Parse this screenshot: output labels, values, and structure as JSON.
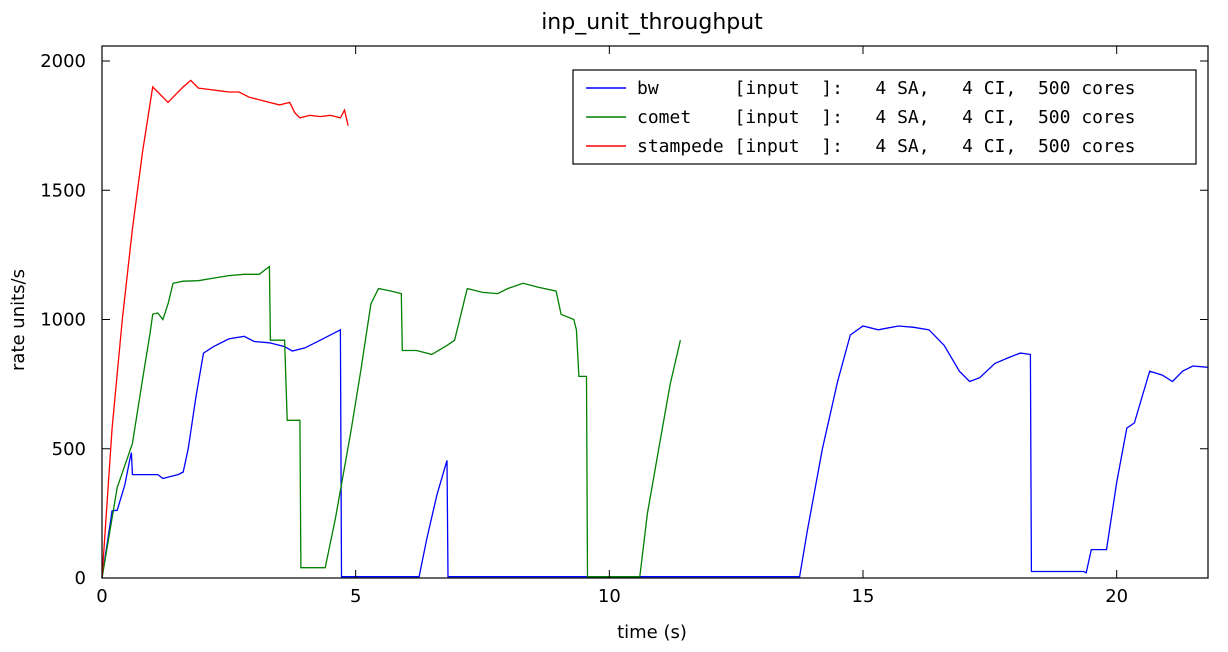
{
  "chart_data": {
    "type": "line",
    "title": "inp_unit_throughput",
    "xlabel": "time (s)",
    "ylabel": "rate units/s",
    "xlim": [
      0,
      21.8
    ],
    "ylim": [
      0,
      2000
    ],
    "xticks": [
      0,
      5,
      10,
      15,
      20
    ],
    "xtick_labels": [
      "0",
      "5",
      "10",
      "15",
      "20"
    ],
    "yticks": [
      0,
      500,
      1000,
      1500,
      2000
    ],
    "ytick_labels": [
      "0",
      "500",
      "1000",
      "1500",
      "2000"
    ],
    "grid": false,
    "legend_position": "top-right",
    "series": [
      {
        "name": "bw       [input  ]:   4 SA,   4 CI,  500 cores",
        "color": "#0000ff",
        "points": [
          [
            0,
            0
          ],
          [
            0.2,
            260
          ],
          [
            0.3,
            262
          ],
          [
            0.45,
            360
          ],
          [
            0.55,
            460
          ],
          [
            0.58,
            485
          ],
          [
            0.6,
            400
          ],
          [
            1.1,
            400
          ],
          [
            1.2,
            385
          ],
          [
            1.4,
            395
          ],
          [
            1.5,
            400
          ],
          [
            1.6,
            410
          ],
          [
            1.7,
            500
          ],
          [
            1.85,
            700
          ],
          [
            2.0,
            870
          ],
          [
            2.2,
            895
          ],
          [
            2.5,
            925
          ],
          [
            2.8,
            935
          ],
          [
            3.0,
            915
          ],
          [
            3.3,
            910
          ],
          [
            3.6,
            895
          ],
          [
            3.75,
            878
          ],
          [
            4.0,
            890
          ],
          [
            4.3,
            920
          ],
          [
            4.6,
            950
          ],
          [
            4.7,
            960
          ],
          [
            4.72,
            5
          ],
          [
            6.25,
            5
          ],
          [
            6.4,
            150
          ],
          [
            6.6,
            320
          ],
          [
            6.8,
            455
          ],
          [
            6.82,
            5
          ],
          [
            13.75,
            5
          ],
          [
            13.9,
            180
          ],
          [
            14.2,
            500
          ],
          [
            14.5,
            760
          ],
          [
            14.75,
            940
          ],
          [
            15.0,
            975
          ],
          [
            15.3,
            960
          ],
          [
            15.7,
            975
          ],
          [
            16.0,
            970
          ],
          [
            16.3,
            960
          ],
          [
            16.6,
            900
          ],
          [
            16.9,
            800
          ],
          [
            17.1,
            760
          ],
          [
            17.3,
            775
          ],
          [
            17.6,
            830
          ],
          [
            17.9,
            855
          ],
          [
            18.1,
            870
          ],
          [
            18.3,
            865
          ],
          [
            18.32,
            25
          ],
          [
            19.35,
            25
          ],
          [
            19.4,
            20
          ],
          [
            19.5,
            110
          ],
          [
            19.8,
            110
          ],
          [
            20.0,
            370
          ],
          [
            20.2,
            580
          ],
          [
            20.35,
            600
          ],
          [
            20.5,
            700
          ],
          [
            20.65,
            800
          ],
          [
            20.9,
            785
          ],
          [
            21.1,
            760
          ],
          [
            21.3,
            800
          ],
          [
            21.5,
            820
          ],
          [
            21.8,
            815
          ]
        ]
      },
      {
        "name": "comet    [input  ]:   4 SA,   4 CI,  500 cores",
        "color": "#008000",
        "points": [
          [
            0,
            0
          ],
          [
            0.3,
            350
          ],
          [
            0.6,
            520
          ],
          [
            0.8,
            770
          ],
          [
            0.95,
            950
          ],
          [
            1.0,
            1020
          ],
          [
            1.1,
            1025
          ],
          [
            1.2,
            1000
          ],
          [
            1.3,
            1060
          ],
          [
            1.4,
            1140
          ],
          [
            1.6,
            1148
          ],
          [
            1.9,
            1150
          ],
          [
            2.2,
            1160
          ],
          [
            2.5,
            1170
          ],
          [
            2.8,
            1175
          ],
          [
            3.1,
            1175
          ],
          [
            3.3,
            1205
          ],
          [
            3.32,
            920
          ],
          [
            3.6,
            920
          ],
          [
            3.65,
            610
          ],
          [
            3.9,
            610
          ],
          [
            3.92,
            40
          ],
          [
            4.4,
            40
          ],
          [
            4.6,
            230
          ],
          [
            4.9,
            560
          ],
          [
            5.1,
            800
          ],
          [
            5.3,
            1060
          ],
          [
            5.45,
            1120
          ],
          [
            5.7,
            1110
          ],
          [
            5.9,
            1100
          ],
          [
            5.92,
            880
          ],
          [
            6.2,
            880
          ],
          [
            6.5,
            865
          ],
          [
            6.8,
            900
          ],
          [
            6.95,
            920
          ],
          [
            7.05,
            1000
          ],
          [
            7.15,
            1080
          ],
          [
            7.2,
            1120
          ],
          [
            7.5,
            1105
          ],
          [
            7.8,
            1100
          ],
          [
            8.0,
            1120
          ],
          [
            8.3,
            1140
          ],
          [
            8.6,
            1125
          ],
          [
            8.95,
            1110
          ],
          [
            9.05,
            1020
          ],
          [
            9.3,
            1000
          ],
          [
            9.35,
            960
          ],
          [
            9.4,
            780
          ],
          [
            9.55,
            780
          ],
          [
            9.57,
            5
          ],
          [
            10.6,
            5
          ],
          [
            10.75,
            250
          ],
          [
            11.0,
            530
          ],
          [
            11.2,
            750
          ],
          [
            11.4,
            920
          ]
        ]
      },
      {
        "name": "stampede [input  ]:   4 SA,   4 CI,  500 cores",
        "color": "#ff0000",
        "points": [
          [
            0,
            0
          ],
          [
            0.2,
            580
          ],
          [
            0.4,
            1000
          ],
          [
            0.6,
            1350
          ],
          [
            0.8,
            1650
          ],
          [
            1.0,
            1900
          ],
          [
            1.1,
            1880
          ],
          [
            1.2,
            1860
          ],
          [
            1.3,
            1840
          ],
          [
            1.45,
            1870
          ],
          [
            1.6,
            1900
          ],
          [
            1.75,
            1925
          ],
          [
            1.9,
            1895
          ],
          [
            2.1,
            1890
          ],
          [
            2.3,
            1885
          ],
          [
            2.5,
            1880
          ],
          [
            2.7,
            1880
          ],
          [
            2.9,
            1860
          ],
          [
            3.1,
            1850
          ],
          [
            3.3,
            1840
          ],
          [
            3.5,
            1830
          ],
          [
            3.7,
            1840
          ],
          [
            3.8,
            1800
          ],
          [
            3.9,
            1780
          ],
          [
            4.1,
            1790
          ],
          [
            4.3,
            1785
          ],
          [
            4.5,
            1790
          ],
          [
            4.7,
            1780
          ],
          [
            4.78,
            1810
          ],
          [
            4.85,
            1750
          ]
        ]
      }
    ]
  }
}
